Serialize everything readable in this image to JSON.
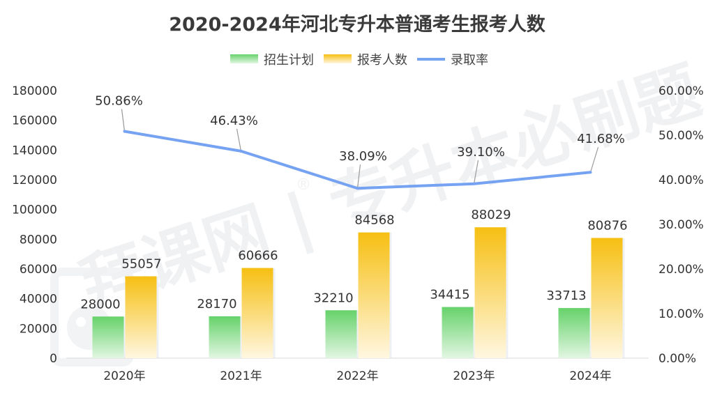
{
  "chart_data": {
    "type": "bar",
    "title": "2020-2024年河北专升本普通考生报考人数",
    "categories": [
      "2020年",
      "2021年",
      "2022年",
      "2023年",
      "2024年"
    ],
    "series": [
      {
        "name": "招生计划",
        "type": "bar",
        "axis": "left",
        "values": [
          28000,
          28170,
          32210,
          34415,
          33713
        ],
        "labels": [
          "28000",
          "28170",
          "32210",
          "34415",
          "33713"
        ],
        "color": "#6fd36f"
      },
      {
        "name": "报考人数",
        "type": "bar",
        "axis": "left",
        "values": [
          55057,
          60666,
          84568,
          88029,
          80876
        ],
        "labels": [
          "55057",
          "60666",
          "84568",
          "88029",
          "80876"
        ],
        "color": "#f6c21a"
      },
      {
        "name": "录取率",
        "type": "line",
        "axis": "right",
        "values": [
          50.86,
          46.43,
          38.09,
          39.1,
          41.68
        ],
        "labels": [
          "50.86%",
          "46.43%",
          "38.09%",
          "39.10%",
          "41.68%"
        ],
        "color": "#76a2f2"
      }
    ],
    "y_left": {
      "range": [
        0,
        180000
      ],
      "ticks": [
        "0",
        "20000",
        "40000",
        "60000",
        "80000",
        "100000",
        "120000",
        "140000",
        "160000",
        "180000"
      ]
    },
    "y_right": {
      "range": [
        0,
        60
      ],
      "unit": "%",
      "ticks": [
        "0.00%",
        "10.00%",
        "20.00%",
        "30.00%",
        "40.00%",
        "50.00%",
        "60.00%"
      ]
    },
    "grid": false,
    "legend": "top-center"
  },
  "watermark": {
    "text": "拜课网 | 专升本必刷题",
    "registered": "®"
  }
}
